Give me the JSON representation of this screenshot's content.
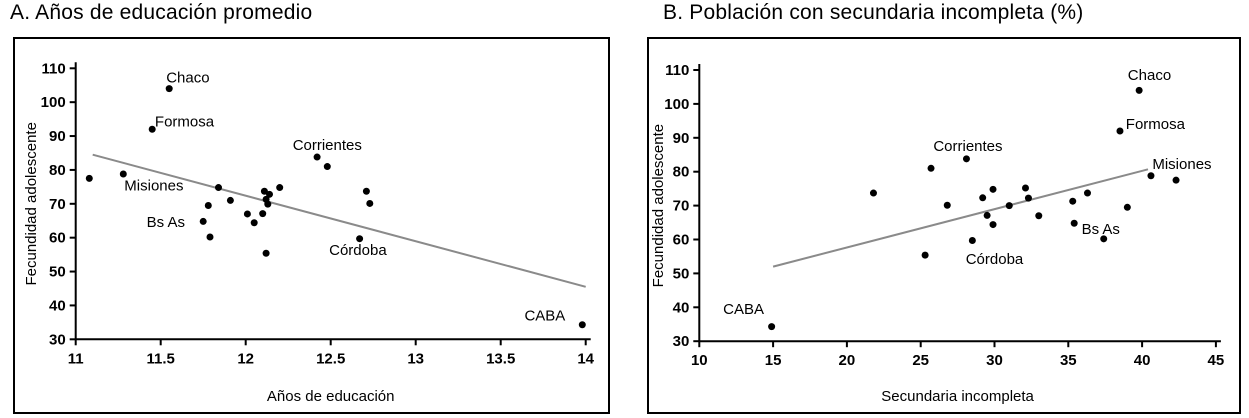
{
  "chart_data": [
    {
      "type": "scatter",
      "panel": "A",
      "title": "A. Años de educación promedio",
      "xlabel": "Años de educación",
      "ylabel": "Fecundidad adolescente",
      "xlim": [
        11,
        14
      ],
      "ylim": [
        30,
        110
      ],
      "xtick_step": 0.5,
      "ytick_step": 10,
      "grid": false,
      "point_color": "#000000",
      "trend_color": "#8a8a8a",
      "trend_line": [
        [
          11.1,
          84.5
        ],
        [
          14.0,
          45.5
        ]
      ],
      "points": [
        [
          11.08,
          77.5
        ],
        [
          11.28,
          78.8
        ],
        [
          11.45,
          92.0
        ],
        [
          11.55,
          104.0
        ],
        [
          11.75,
          64.8
        ],
        [
          11.78,
          69.5
        ],
        [
          11.79,
          60.2
        ],
        [
          11.84,
          74.8
        ],
        [
          11.91,
          71.0
        ],
        [
          12.01,
          67.0
        ],
        [
          12.05,
          64.4
        ],
        [
          12.1,
          67.1
        ],
        [
          12.11,
          73.7
        ],
        [
          12.12,
          71.3
        ],
        [
          12.12,
          55.4
        ],
        [
          12.13,
          69.9
        ],
        [
          12.14,
          72.8
        ],
        [
          12.2,
          74.8
        ],
        [
          12.42,
          83.8
        ],
        [
          12.48,
          81.0
        ],
        [
          12.67,
          59.7
        ],
        [
          12.71,
          73.7
        ],
        [
          12.73,
          70.1
        ],
        [
          13.98,
          34.3
        ]
      ],
      "annotations": [
        {
          "text": "Chaco",
          "x": 11.66,
          "y": 107.3
        },
        {
          "text": "Formosa",
          "x": 11.64,
          "y": 94.3
        },
        {
          "text": "Misiones",
          "x": 11.46,
          "y": 75.4
        },
        {
          "text": "Bs As",
          "x": 11.53,
          "y": 64.7
        },
        {
          "text": "Corrientes",
          "x": 12.48,
          "y": 87.3
        },
        {
          "text": "Córdoba",
          "x": 12.66,
          "y": 56.4
        },
        {
          "text": "CABA",
          "x": 13.76,
          "y": 37.0
        }
      ]
    },
    {
      "type": "scatter",
      "panel": "B",
      "title": "B. Población con secundaria incompleta (%)",
      "xlabel": "Secundaria incompleta",
      "ylabel": "Fecundidad adolescente",
      "xlim": [
        10,
        45
      ],
      "ylim": [
        30,
        110
      ],
      "xtick_step": 5,
      "ytick_step": 10,
      "grid": false,
      "point_color": "#000000",
      "trend_color": "#8a8a8a",
      "trend_line": [
        [
          15.0,
          52.0
        ],
        [
          40.4,
          80.7
        ]
      ],
      "points": [
        [
          14.9,
          34.3
        ],
        [
          21.8,
          73.7
        ],
        [
          25.3,
          55.4
        ],
        [
          25.7,
          81.0
        ],
        [
          26.8,
          70.1
        ],
        [
          28.1,
          83.8
        ],
        [
          28.5,
          59.7
        ],
        [
          29.2,
          72.3
        ],
        [
          29.5,
          67.1
        ],
        [
          29.9,
          74.8
        ],
        [
          29.9,
          64.4
        ],
        [
          31.0,
          70.0
        ],
        [
          32.1,
          75.2
        ],
        [
          32.3,
          72.2
        ],
        [
          33.0,
          67.0
        ],
        [
          35.3,
          71.3
        ],
        [
          35.4,
          64.8
        ],
        [
          36.3,
          73.7
        ],
        [
          37.4,
          60.2
        ],
        [
          38.5,
          92.0
        ],
        [
          39.0,
          69.5
        ],
        [
          39.8,
          104.0
        ],
        [
          40.6,
          78.8
        ],
        [
          42.3,
          77.5
        ]
      ],
      "annotations": [
        {
          "text": "CABA",
          "x": 13.0,
          "y": 39.5
        },
        {
          "text": "Corrientes",
          "x": 28.2,
          "y": 87.6
        },
        {
          "text": "Córdoba",
          "x": 30.0,
          "y": 54.2
        },
        {
          "text": "Bs As",
          "x": 37.2,
          "y": 63.1
        },
        {
          "text": "Formosa",
          "x": 40.9,
          "y": 94.1
        },
        {
          "text": "Chaco",
          "x": 40.5,
          "y": 108.5
        },
        {
          "text": "Misiones",
          "x": 42.7,
          "y": 82.3
        }
      ]
    }
  ]
}
